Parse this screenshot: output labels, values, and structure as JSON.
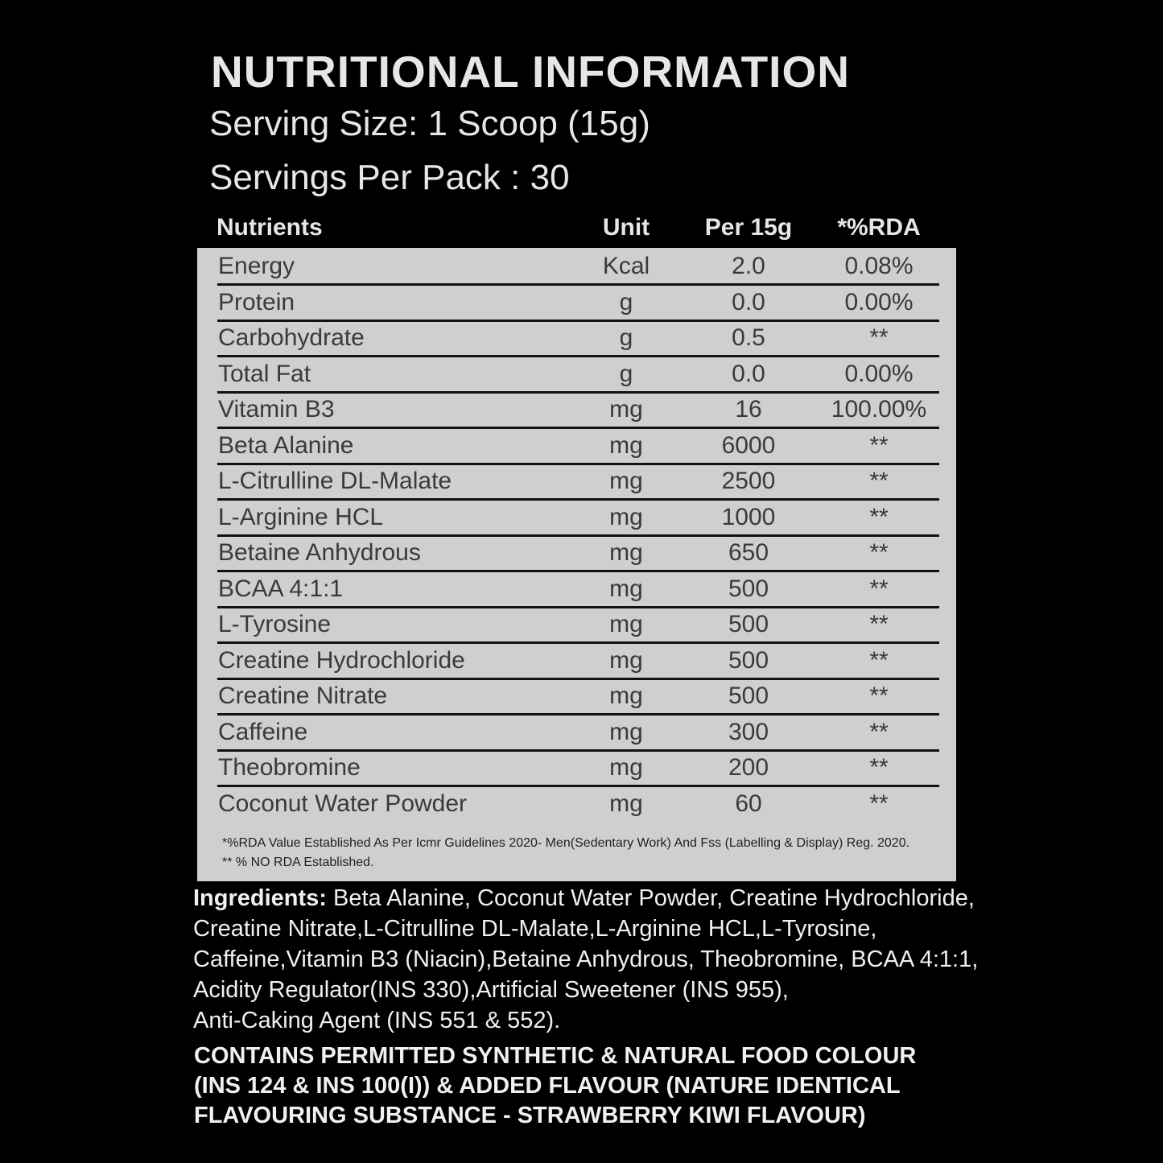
{
  "title": "NUTRITIONAL INFORMATION",
  "serving_size": "Serving Size: 1 Scoop (15g)",
  "servings_per_pack": "Servings Per Pack : 30",
  "table": {
    "header": [
      "Nutrients",
      "Unit",
      "Per 15g",
      "*%RDA"
    ],
    "rows": [
      [
        "Energy",
        "Kcal",
        "2.0",
        "0.08%"
      ],
      [
        "Protein",
        "g",
        "0.0",
        "0.00%"
      ],
      [
        "Carbohydrate",
        "g",
        "0.5",
        "**"
      ],
      [
        "Total Fat",
        "g",
        "0.0",
        "0.00%"
      ],
      [
        "Vitamin B3",
        "mg",
        "16",
        "100.00%"
      ],
      [
        "Beta Alanine",
        "mg",
        "6000",
        "**"
      ],
      [
        "L-Citrulline DL-Malate",
        "mg",
        "2500",
        "**"
      ],
      [
        "L-Arginine HCL",
        "mg",
        "1000",
        "**"
      ],
      [
        "Betaine Anhydrous",
        "mg",
        "650",
        "**"
      ],
      [
        "BCAA 4:1:1",
        "mg",
        "500",
        "**"
      ],
      [
        "L-Tyrosine",
        "mg",
        "500",
        "**"
      ],
      [
        "Creatine Hydrochloride",
        "mg",
        "500",
        "**"
      ],
      [
        "Creatine Nitrate",
        "mg",
        "500",
        "**"
      ],
      [
        "Caffeine",
        "mg",
        "300",
        "**"
      ],
      [
        "Theobromine",
        "mg",
        "200",
        "**"
      ],
      [
        "Coconut Water Powder",
        "mg",
        "60",
        "**"
      ]
    ],
    "footnotes": [
      "*%RDA Value Established As Per Icmr Guidelines 2020- Men(Sedentary Work) And Fss (Labelling & Display) Reg. 2020.",
      "** % NO RDA Established."
    ]
  },
  "ingredients": {
    "label": "Ingredients:",
    "lines": [
      "Beta Alanine, Coconut Water Powder, Creatine Hydrochloride,",
      "Creatine Nitrate,L-Citrulline DL-Malate,L-Arginine HCL,L-Tyrosine,",
      "Caffeine,Vitamin B3 (Niacin),Betaine Anhydrous, Theobromine, BCAA 4:1:1,",
      "Acidity Regulator(INS 330),Artificial Sweetener (INS 955),",
      "Anti-Caking Agent (INS 551 & 552)."
    ]
  },
  "contains": [
    "CONTAINS PERMITTED SYNTHETIC & NATURAL FOOD COLOUR",
    "(INS 124 & INS 100(I)) & ADDED FLAVOUR (NATURE IDENTICAL",
    "FLAVOURING SUBSTANCE - STRAWBERRY KIWI FLAVOUR)"
  ]
}
